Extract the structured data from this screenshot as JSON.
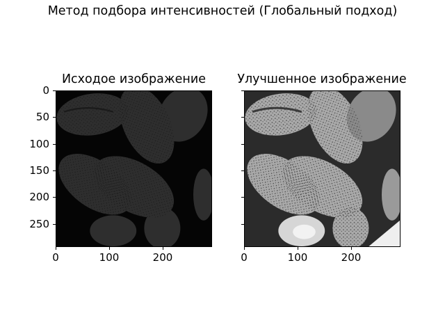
{
  "figure": {
    "suptitle": "Метод подбора интенсивностей (Глобальный подход)"
  },
  "left_panel": {
    "title": "Исходое изображение",
    "y_ticks": [
      "0",
      "50",
      "100",
      "150",
      "200",
      "250"
    ],
    "x_ticks": [
      "0",
      "100",
      "200"
    ]
  },
  "right_panel": {
    "title": "Улучшенное изображение",
    "x_ticks": [
      "0",
      "100",
      "200"
    ]
  },
  "colors": {
    "original_bg": "#050505",
    "original_grain": "#3a3a3a",
    "enhanced_bg": "#2b2b2b",
    "enhanced_grain": "#bdbdbd",
    "enhanced_highlight": "#efefef"
  }
}
